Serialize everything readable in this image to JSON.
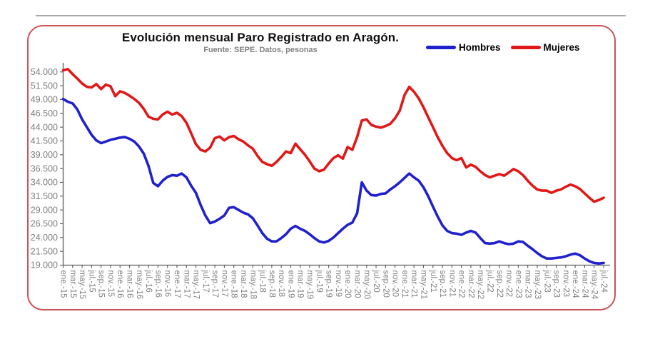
{
  "chart": {
    "border_color": "#cd5056",
    "background": "#ffffff"
  },
  "colors": {
    "axis": "#595959",
    "tick_label": "#7f7f7f",
    "title": "#111111",
    "subtitle": "#808080"
  },
  "chart_data": {
    "type": "line",
    "title": "Evolución mensual Paro Registrado en Aragón.",
    "subtitle": "Fuente: SEPE. Datos, pesonas",
    "xlabel": "",
    "ylabel": "",
    "grid": false,
    "legend_position": "top-right",
    "y_min": 19000,
    "y_max": 54000,
    "y_step": 2500,
    "x_label_rotation": 90,
    "y_tick_labels": [
      "54.000",
      "51.500",
      "49.000",
      "46.500",
      "44.000",
      "41.500",
      "39.000",
      "36.500",
      "34.000",
      "31.500",
      "29.000",
      "26.500",
      "24.000",
      "21.500",
      "19.000"
    ],
    "x_tick_labels": [
      "ene.-15",
      "mar.-15",
      "may.-15",
      "jul.-15",
      "sep.-15",
      "nov.-15",
      "ene.-16",
      "mar.-16",
      "may.-16",
      "jul.-16",
      "sep.-16",
      "nov.-16",
      "ene.-17",
      "mar.-17",
      "may.-17",
      "jul.-17",
      "sep.-17",
      "nov.-17",
      "ene.-18",
      "mar.-18",
      "may.-18",
      "jul.-18",
      "sep.-18",
      "nov.-18",
      "ene.-19",
      "mar.-19",
      "may.-19",
      "jul.-19",
      "sep.-19",
      "nov.-19",
      "ene.-20",
      "mar.-20",
      "may.-20",
      "jul.-20",
      "sep.-20",
      "nov.-20",
      "ene.-21",
      "mar.-21",
      "may.-21",
      "jul.-21",
      "sep.-21",
      "nov.-21",
      "ene.-22",
      "mar.-22",
      "may.-22",
      "jul.-22",
      "sep.-22",
      "nov.-22",
      "ene.-23",
      "mar.-23",
      "may.-23",
      "jul.-23",
      "sep.-23",
      "nov.-23",
      "ene.-24",
      "mar.-24",
      "may.-24",
      "jul.-24"
    ],
    "series": [
      {
        "name": "Hombres",
        "color": "#2020cc",
        "values": [
          49100,
          48600,
          48300,
          47200,
          45400,
          44000,
          42600,
          41600,
          41100,
          41400,
          41700,
          41900,
          42100,
          42200,
          41900,
          41400,
          40500,
          39200,
          37000,
          33900,
          33300,
          34300,
          35000,
          35300,
          35200,
          35600,
          34900,
          33400,
          32100,
          29900,
          28000,
          26600,
          26900,
          27400,
          28000,
          29400,
          29500,
          29000,
          28500,
          28200,
          27500,
          26200,
          24800,
          23800,
          23300,
          23300,
          23900,
          24600,
          25600,
          26100,
          25600,
          25200,
          24600,
          23900,
          23300,
          23100,
          23400,
          24000,
          24800,
          25600,
          26300,
          26700,
          28400,
          34000,
          32500,
          31700,
          31600,
          31900,
          32000,
          32700,
          33300,
          34000,
          34800,
          35600,
          34900,
          34300,
          33100,
          31500,
          29600,
          27800,
          26200,
          25200,
          24800,
          24700,
          24500,
          24900,
          25200,
          24900,
          23900,
          23000,
          22900,
          23000,
          23300,
          23000,
          22800,
          22900,
          23300,
          23200,
          22500,
          21900,
          21200,
          20600,
          20200,
          20200,
          20300,
          20400,
          20600,
          20900,
          21100,
          20800,
          20200,
          19700,
          19400,
          19300,
          19400
        ]
      },
      {
        "name": "Mujeres",
        "color": "#e01818",
        "values": [
          54300,
          54500,
          53600,
          52800,
          51900,
          51300,
          51200,
          51800,
          50900,
          51700,
          51400,
          49600,
          50500,
          50200,
          49700,
          49100,
          48400,
          47300,
          45900,
          45500,
          45400,
          46300,
          46800,
          46300,
          46600,
          46000,
          44800,
          42900,
          40900,
          39900,
          39600,
          40300,
          42000,
          42300,
          41600,
          42200,
          42400,
          41800,
          41400,
          40700,
          40100,
          38800,
          37700,
          37300,
          37000,
          37700,
          38600,
          39600,
          39300,
          41000,
          40000,
          39000,
          37800,
          36500,
          36000,
          36300,
          37400,
          38400,
          38900,
          38300,
          40400,
          39900,
          42200,
          45200,
          45400,
          44400,
          44100,
          43900,
          44200,
          44600,
          45600,
          47000,
          49800,
          51300,
          50400,
          49200,
          47600,
          45800,
          44000,
          42200,
          40600,
          39300,
          38400,
          38000,
          38400,
          36700,
          37200,
          36800,
          36000,
          35300,
          34900,
          35200,
          35500,
          35200,
          35800,
          36400,
          36000,
          35300,
          34300,
          33400,
          32700,
          32500,
          32500,
          32100,
          32500,
          32700,
          33200,
          33600,
          33300,
          32800,
          32000,
          31200,
          30500,
          30800,
          31200
        ]
      }
    ]
  }
}
